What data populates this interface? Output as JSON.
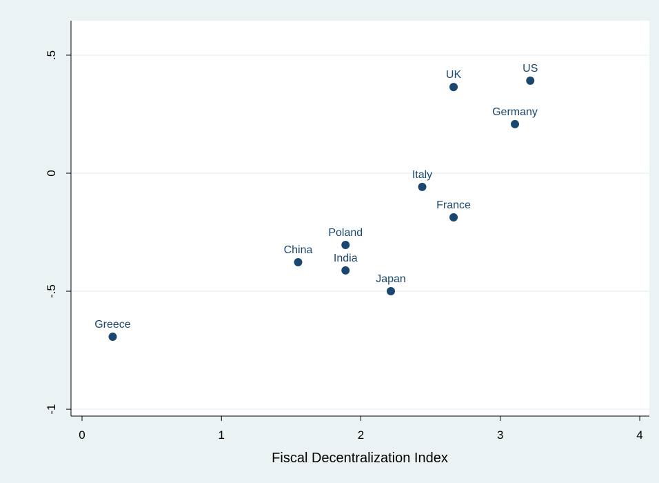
{
  "chart_data": {
    "type": "scatter",
    "xlabel": "Fiscal Decentralization Index",
    "labels": [
      "Greece",
      "China",
      "Poland",
      "India",
      "Japan",
      "Italy",
      "France",
      "UK",
      "Germany",
      "US"
    ],
    "x": [
      0.22,
      1.55,
      1.89,
      1.89,
      2.215,
      2.44,
      2.665,
      2.665,
      3.105,
      3.215
    ],
    "y": [
      -0.693,
      -0.377,
      -0.304,
      -0.412,
      -0.5,
      -0.058,
      -0.187,
      0.365,
      0.208,
      0.392
    ],
    "color": "#1a476f",
    "xlim": [
      -0.079,
      4.069
    ],
    "ylim": [
      -1.029,
      0.646
    ],
    "xticks": [
      0,
      1,
      2,
      3,
      4
    ],
    "yticks": [
      {
        "value": 0.5,
        "label": ".5"
      },
      0,
      {
        "value": -0.5,
        "label": "-.5"
      },
      -1
    ],
    "grid": true
  }
}
